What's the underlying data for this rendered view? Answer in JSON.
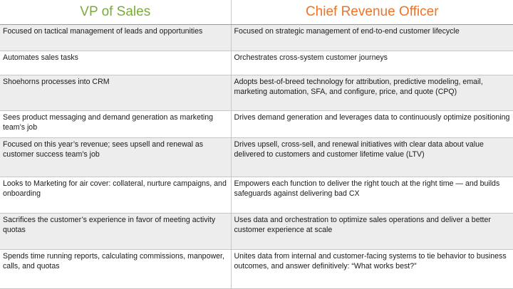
{
  "colors": {
    "left_accent": "#7bab3a",
    "right_accent": "#ec7428"
  },
  "headers": {
    "left": "VP of Sales",
    "right": "Chief Revenue Officer"
  },
  "rows": [
    {
      "left": "Focused on tactical management of leads and opportunities",
      "right": "Focused on strategic management of end-to-end customer lifecycle"
    },
    {
      "left": "Automates sales tasks",
      "right": "Orchestrates cross-system customer journeys"
    },
    {
      "left": "Shoehorns processes into CRM",
      "right": "Adopts best-of-breed technology for attribution, predictive modeling, email, marketing automation, SFA, and configure, price, and quote (CPQ)"
    },
    {
      "left": "Sees product messaging and demand generation as marketing team’s job",
      "right": "Drives demand generation and leverages data to continuously optimize positioning"
    },
    {
      "left": "Focused on this year’s revenue; sees upsell and renewal as customer success team’s job",
      "right": "Drives upsell, cross-sell, and renewal initiatives with clear data about value delivered to customers and customer lifetime value (LTV)"
    },
    {
      "left": "Looks to Marketing for air cover: collateral, nurture campaigns, and onboarding",
      "right": "Empowers each function to deliver the right touch at the right time — and builds safeguards against delivering bad CX"
    },
    {
      "left": "Sacrifices the customer’s experience in favor of meeting activity quotas",
      "right": "Uses data and orchestration to optimize sales operations and deliver a better customer experience at scale"
    },
    {
      "left": "Spends time running reports, calculating commissions, manpower, calls, and quotas",
      "right": "Unites data from internal and customer-facing systems to tie behavior to business outcomes, and answer definitively: “What works best?”"
    }
  ]
}
